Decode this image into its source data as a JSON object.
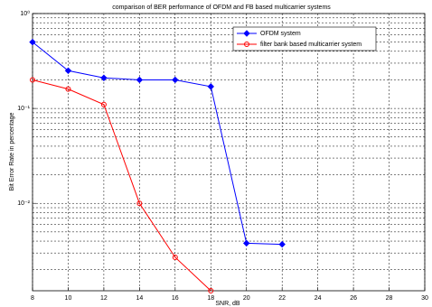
{
  "chart_data": {
    "type": "line",
    "title": "comparison of BER performance of OFDM and FB based multicarrier systems",
    "xlabel": "SNR, dB",
    "ylabel": "Bit Error Rate in percentage",
    "x": [
      8,
      10,
      12,
      14,
      16,
      18,
      20,
      22
    ],
    "series": [
      {
        "name": "OFDM system",
        "color": "#0000ff",
        "marker": "diamond",
        "values": [
          0.5,
          0.25,
          0.21,
          0.2,
          0.2,
          0.17,
          0.0038,
          0.0037
        ]
      },
      {
        "name": "filter bank based multicarrier system",
        "color": "#ff0000",
        "marker": "circle",
        "values": [
          0.2,
          0.16,
          0.11,
          0.01,
          0.0027,
          0.0012,
          null,
          null
        ]
      }
    ],
    "xlim": [
      8,
      30
    ],
    "xticks": [
      8,
      10,
      12,
      14,
      16,
      18,
      20,
      22,
      24,
      26,
      28,
      30
    ],
    "ylim": [
      0.0012,
      1
    ],
    "yticks": [
      {
        "value": 1,
        "label": "10⁰"
      },
      {
        "value": 0.1,
        "label": "10⁻¹"
      },
      {
        "value": 0.01,
        "label": "10⁻²"
      }
    ],
    "ylog": true,
    "grid": true,
    "legend": "upper right"
  }
}
